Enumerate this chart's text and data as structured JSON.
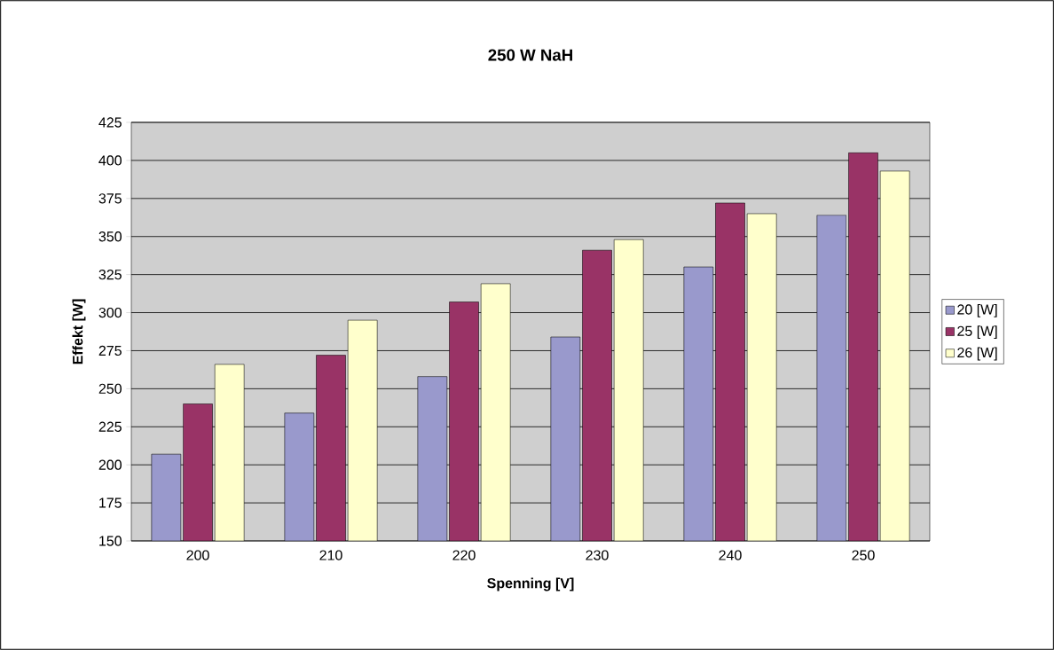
{
  "chart_data": {
    "type": "bar",
    "title": "250 W NaH",
    "xlabel": "Spenning [V]",
    "ylabel": "Effekt [W]",
    "categories": [
      "200",
      "210",
      "220",
      "230",
      "240",
      "250"
    ],
    "series": [
      {
        "name": "20 [W]",
        "color": "#9999cc",
        "values": [
          207,
          234,
          258,
          284,
          330,
          364
        ]
      },
      {
        "name": "25 [W]",
        "color": "#993366",
        "values": [
          240,
          272,
          307,
          341,
          372,
          405
        ]
      },
      {
        "name": "26 [W]",
        "color": "#ffffcc",
        "values": [
          266,
          295,
          319,
          348,
          365,
          393
        ]
      }
    ],
    "ylim": [
      150,
      425
    ],
    "yticks": [
      150,
      175,
      200,
      225,
      250,
      275,
      300,
      325,
      350,
      375,
      400,
      425
    ],
    "grid": "y",
    "legend": "right"
  }
}
